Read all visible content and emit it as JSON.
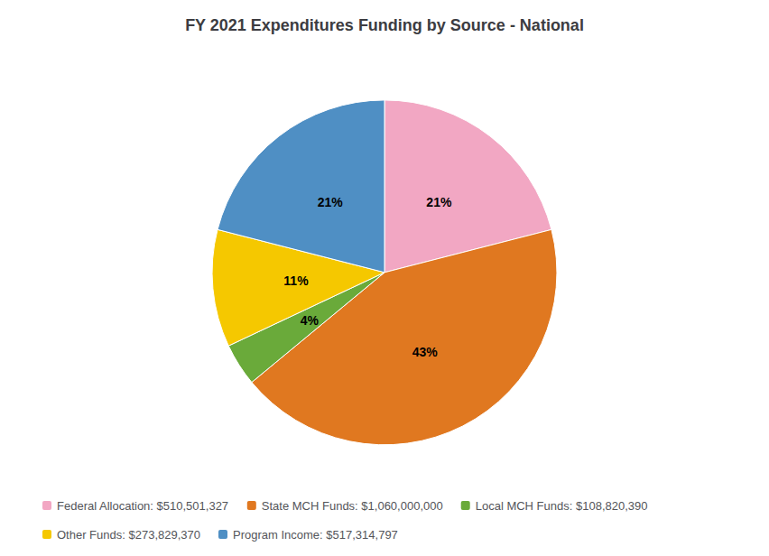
{
  "chart_data": {
    "type": "pie",
    "title": "FY 2021 Expenditures Funding by Source - National",
    "categories": [
      "Federal Allocation: $510,501,327",
      "State MCH Funds: $1,060,000,000",
      "Local MCH Funds: $108,820,390",
      "Other Funds: $273,829,370",
      "Program Income: $517,314,797"
    ],
    "values": [
      21,
      43,
      4,
      11,
      21
    ],
    "value_labels": [
      "21%",
      "43%",
      "4%",
      "11%",
      "21%"
    ],
    "colors": [
      "#f2a7c3",
      "#e07820",
      "#6aaa3a",
      "#f5c800",
      "#4f8fc4"
    ],
    "data_labels": true,
    "legend": "bottom"
  }
}
